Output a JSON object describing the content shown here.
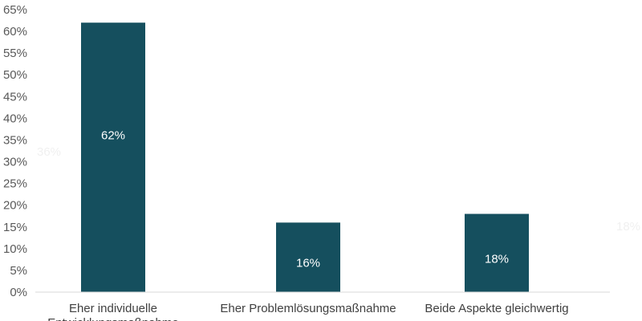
{
  "chart_data": {
    "type": "bar",
    "categories": [
      "Eher individuelle Entwicklungsmaßnahme",
      "Eher Problemlösungsmaßnahme",
      "Beide Aspekte gleichwertig"
    ],
    "category_lines": [
      [
        "Eher individuelle",
        "Entwicklungsmaßnahme"
      ],
      [
        "Eher Problemlösungsmaßnahme"
      ],
      [
        "Beide Aspekte gleichwertig"
      ]
    ],
    "values": [
      62,
      16,
      18
    ],
    "data_labels": [
      "62%",
      "16%",
      "18%"
    ],
    "ylim": [
      0,
      65
    ],
    "yticks": [
      0,
      5,
      10,
      15,
      20,
      25,
      30,
      35,
      40,
      45,
      50,
      55,
      60,
      65
    ],
    "ytick_labels": [
      "0%",
      "5%",
      "10%",
      "15%",
      "20%",
      "25%",
      "30%",
      "35%",
      "40%",
      "45%",
      "50%",
      "55%",
      "60%",
      "65%"
    ],
    "faint_labels": [
      "36%",
      "18%"
    ],
    "grid": false,
    "bar_color": "#154f5e",
    "title": "",
    "xlabel": "",
    "ylabel": ""
  }
}
